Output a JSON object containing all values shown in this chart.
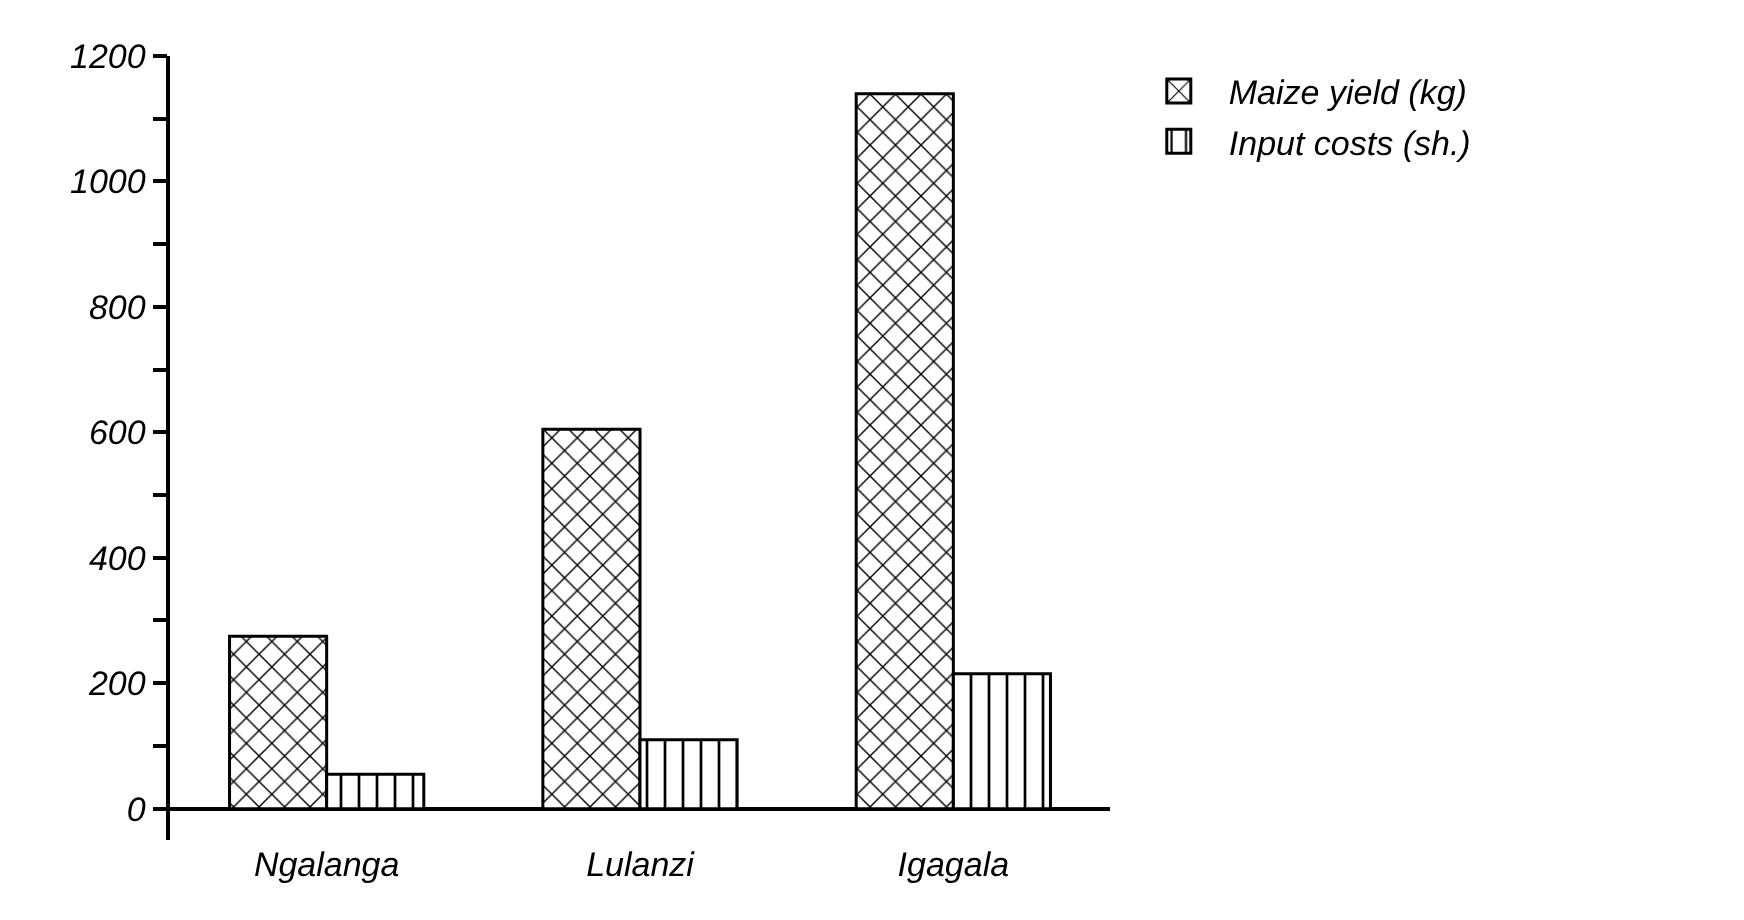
{
  "chart_data": {
    "type": "bar",
    "categories": [
      "Ngalanga",
      "Lulanzi",
      "Igagala"
    ],
    "series": [
      {
        "name": "Maize yield (kg)",
        "color": "#000000",
        "values": [
          275,
          605,
          1140
        ]
      },
      {
        "name": "Input costs (sh.)",
        "color": "#000000",
        "values": [
          55,
          110,
          215
        ]
      }
    ],
    "ylim": [
      -50,
      1200
    ],
    "yticks": [
      0,
      {
        "value": 100,
        "label": null
      },
      200,
      {
        "value": 300,
        "label": null
      },
      400,
      {
        "value": 500,
        "label": null
      },
      600,
      {
        "value": 700,
        "label": null
      },
      800,
      {
        "value": 900,
        "label": null
      },
      1000,
      {
        "value": 1100,
        "label": null
      },
      1200
    ],
    "grid": false,
    "legend": "top right"
  }
}
